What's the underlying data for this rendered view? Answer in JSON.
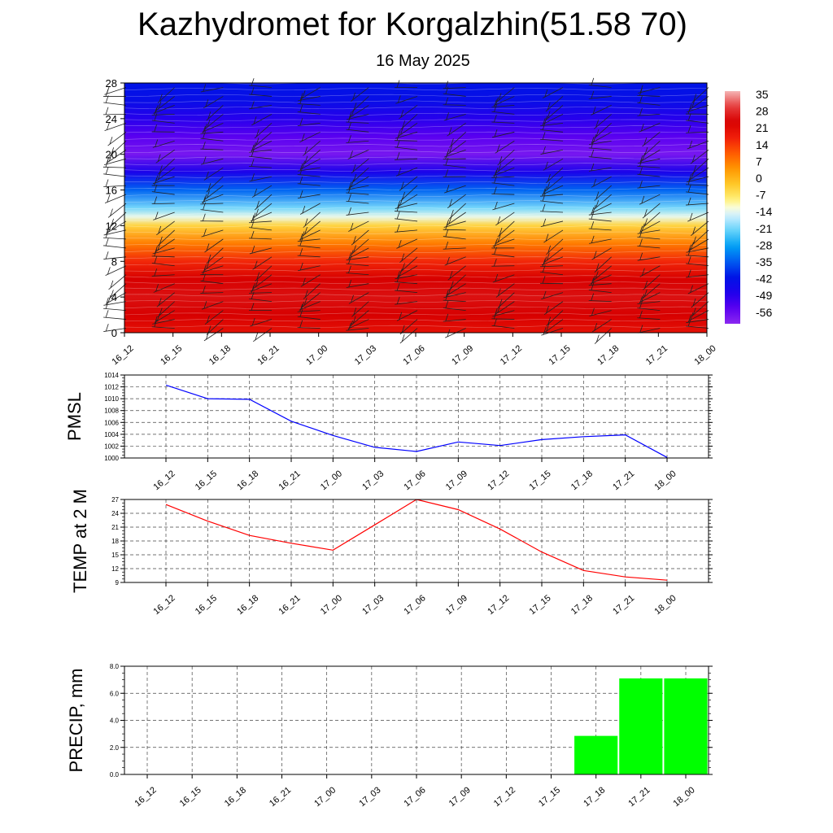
{
  "title": "Kazhydromet for Korgalzhin(51.58 70)",
  "subtitle": "16 May 2025",
  "chart_data": [
    {
      "type": "heatmap",
      "time_labels": [
        "16_12",
        "16_15",
        "16_18",
        "16_21",
        "17_00",
        "17_03",
        "17_06",
        "17_09",
        "17_12",
        "17_15",
        "17_18",
        "17_21",
        "18_00"
      ],
      "y_ticks": [
        0,
        4,
        8,
        12,
        16,
        20,
        24,
        28
      ],
      "ylim": [
        0,
        28
      ],
      "colorbar_labels": [
        "35",
        "28",
        "21",
        "14",
        "7",
        "0",
        "-7",
        "-14",
        "-21",
        "-28",
        "-35",
        "-42",
        "-49",
        "-56"
      ],
      "colorbar_range": [
        -63,
        42
      ],
      "temperature_profile": [
        {
          "level": 0,
          "value": 24
        },
        {
          "level": 2,
          "value": 28
        },
        {
          "level": 4,
          "value": 30
        },
        {
          "level": 6,
          "value": 28
        },
        {
          "level": 8,
          "value": 20
        },
        {
          "level": 10,
          "value": 10
        },
        {
          "level": 12,
          "value": -2
        },
        {
          "level": 13,
          "value": -12
        },
        {
          "level": 14,
          "value": -20
        },
        {
          "level": 16,
          "value": -34
        },
        {
          "level": 18,
          "value": -48
        },
        {
          "level": 20,
          "value": -60
        },
        {
          "level": 22,
          "value": -56
        },
        {
          "level": 24,
          "value": -50
        },
        {
          "level": 26,
          "value": -44
        },
        {
          "level": 28,
          "value": -42
        }
      ],
      "wind_barbs": true
    },
    {
      "type": "line",
      "ylabel": "PMSL",
      "categories": [
        "16_12",
        "16_15",
        "16_18",
        "16_21",
        "17_00",
        "17_03",
        "17_06",
        "17_09",
        "17_12",
        "17_15",
        "17_18",
        "17_21",
        "18_00"
      ],
      "values": [
        1012.3,
        1010.0,
        1009.9,
        1006.2,
        1003.8,
        1001.8,
        1001.1,
        1002.7,
        1002.1,
        1003.1,
        1003.6,
        1003.9,
        1000.1
      ],
      "ylim": [
        1000,
        1014
      ],
      "y_ticks": [
        1000,
        1002,
        1004,
        1006,
        1008,
        1010,
        1012,
        1014
      ],
      "color": "#0000ff",
      "grid": true
    },
    {
      "type": "line",
      "ylabel": "TEMP at 2 M",
      "categories": [
        "16_12",
        "16_15",
        "16_18",
        "16_21",
        "17_00",
        "17_03",
        "17_06",
        "17_09",
        "17_12",
        "17_15",
        "17_18",
        "17_21",
        "18_00"
      ],
      "values": [
        25.9,
        22.3,
        19.2,
        17.5,
        16.0,
        21.5,
        27.0,
        24.8,
        20.6,
        15.6,
        11.6,
        10.2,
        9.5
      ],
      "ylim": [
        9,
        27
      ],
      "y_ticks": [
        9,
        12,
        15,
        18,
        21,
        24,
        27
      ],
      "color": "#ff0000",
      "grid": true
    },
    {
      "type": "bar",
      "ylabel": "PRECIP, mm",
      "categories": [
        "16_12",
        "16_15",
        "16_18",
        "16_21",
        "17_00",
        "17_03",
        "17_06",
        "17_09",
        "17_12",
        "17_15",
        "17_18",
        "17_21",
        "18_00"
      ],
      "values": [
        0,
        0,
        0,
        0,
        0,
        0,
        0,
        0,
        0,
        0,
        2.85,
        7.1,
        7.1
      ],
      "ylim": [
        0,
        8
      ],
      "y_ticks": [
        "0.0",
        "2.0",
        "4.0",
        "6.0",
        "8.0"
      ],
      "color": "#00ff00",
      "grid": true
    }
  ]
}
